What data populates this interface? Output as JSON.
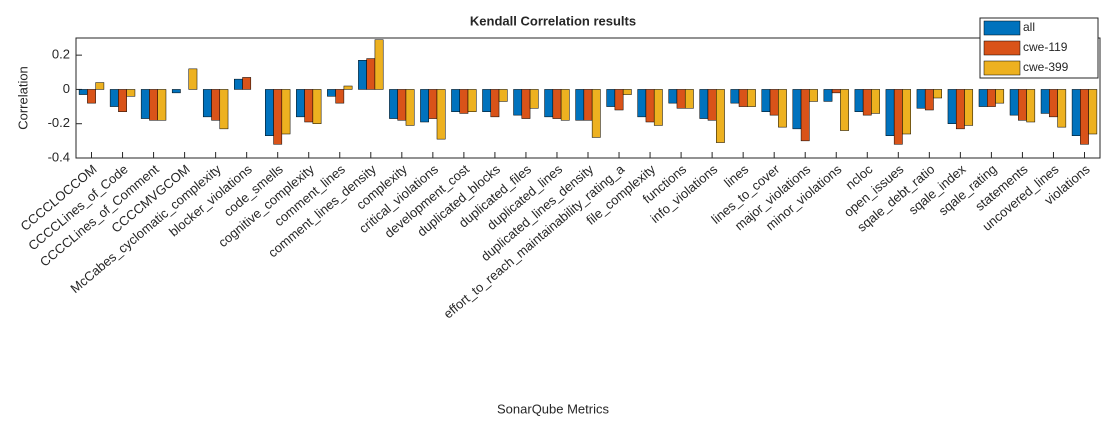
{
  "chart_data": {
    "type": "bar",
    "title": "Kendall Correlation results",
    "x_label": "SonarQube Metrics",
    "y_label": "Correlation",
    "categories": [
      "CCCCLOCCOM",
      "CCCCLines_of_Code",
      "CCCCLines_of_Comment",
      "CCCCMVGCOM",
      "McCabes_cyclomatic_complexity",
      "blocker_violations",
      "code_smells",
      "cognitive_complexity",
      "comment_lines",
      "comment_lines_density",
      "complexity",
      "critical_violations",
      "development_cost",
      "duplicated_blocks",
      "duplicated_files",
      "duplicated_lines",
      "duplicated_lines_density",
      "effort_to_reach_maintainability_rating_a",
      "file_complexity",
      "functions",
      "info_violations",
      "lines",
      "lines_to_cover",
      "major_violations",
      "minor_violations",
      "ncloc",
      "open_issues",
      "sqale_debt_ratio",
      "sqale_index",
      "sqale_rating",
      "statements",
      "uncovered_lines",
      "violations"
    ],
    "series": [
      {
        "name": "all",
        "color": "#0072BD",
        "values": [
          -0.03,
          -0.1,
          -0.17,
          -0.02,
          -0.16,
          0.06,
          -0.27,
          -0.16,
          -0.04,
          0.17,
          -0.17,
          -0.19,
          -0.13,
          -0.13,
          -0.15,
          -0.16,
          -0.18,
          -0.1,
          -0.16,
          -0.08,
          -0.17,
          -0.08,
          -0.13,
          -0.23,
          -0.07,
          -0.13,
          -0.27,
          -0.11,
          -0.2,
          -0.1,
          -0.15,
          -0.14,
          -0.27
        ]
      },
      {
        "name": "cwe-119",
        "color": "#D95319",
        "values": [
          -0.08,
          -0.13,
          -0.18,
          0,
          -0.18,
          0.07,
          -0.32,
          -0.19,
          -0.08,
          0.18,
          -0.18,
          -0.17,
          -0.14,
          -0.16,
          -0.17,
          -0.17,
          -0.18,
          -0.12,
          -0.19,
          -0.11,
          -0.18,
          -0.1,
          -0.15,
          -0.3,
          -0.02,
          -0.15,
          -0.32,
          -0.12,
          -0.23,
          -0.1,
          -0.18,
          -0.16,
          -0.32
        ]
      },
      {
        "name": "cwe-399",
        "color": "#EDB120",
        "values": [
          0.04,
          -0.04,
          -0.18,
          0.12,
          -0.23,
          0,
          -0.26,
          -0.2,
          0.02,
          0.29,
          -0.21,
          -0.29,
          -0.13,
          -0.07,
          -0.11,
          -0.18,
          -0.28,
          -0.03,
          -0.21,
          -0.11,
          -0.31,
          -0.1,
          -0.22,
          -0.07,
          -0.24,
          -0.14,
          -0.26,
          -0.05,
          -0.21,
          -0.08,
          -0.19,
          -0.22,
          -0.26
        ]
      }
    ],
    "ylim": [
      -0.4,
      0.3
    ],
    "yticks": [
      -0.4,
      -0.2,
      0,
      0.2
    ],
    "grid": false,
    "legend": "top-right"
  }
}
